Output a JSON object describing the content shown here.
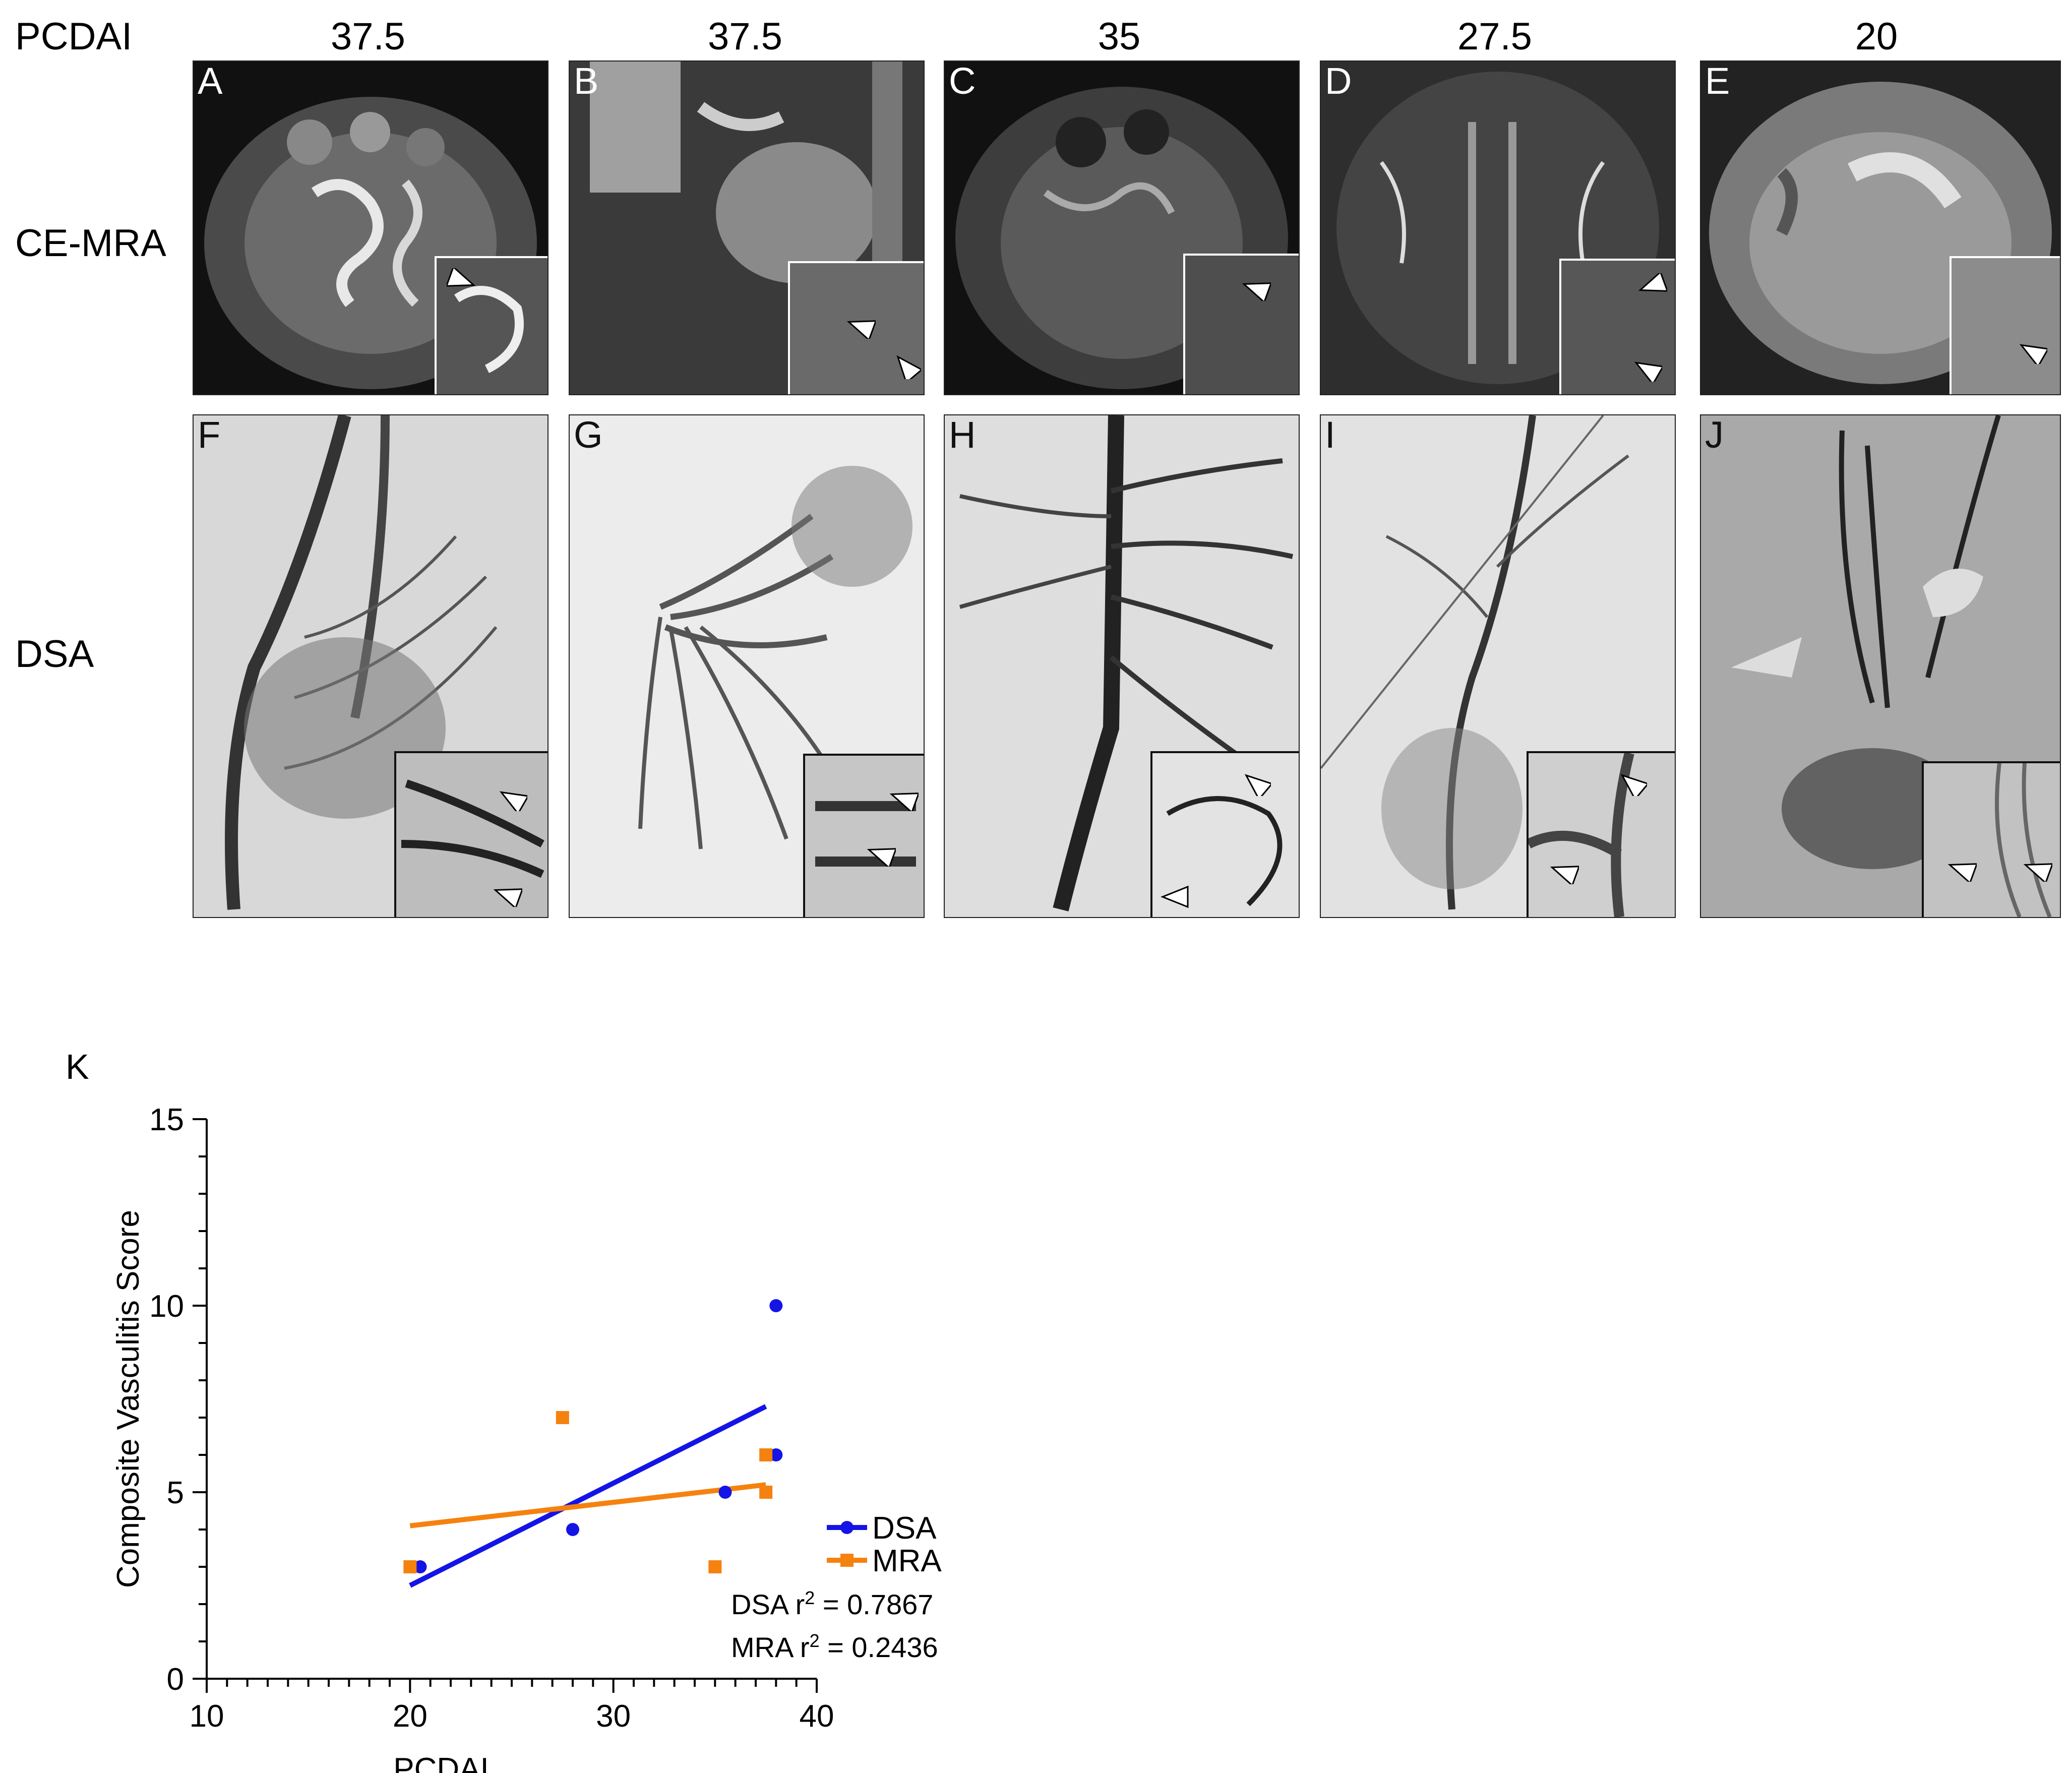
{
  "figure": {
    "row_header": "PCDAI",
    "scores": [
      "37.5",
      "37.5",
      "35",
      "27.5",
      "20"
    ],
    "row_labels": {
      "mra": "CE-MRA",
      "dsa": "DSA"
    },
    "mra_panels": [
      "A",
      "B",
      "C",
      "D",
      "E"
    ],
    "dsa_panels": [
      "F",
      "G",
      "H",
      "I",
      "J"
    ],
    "panel_k_label": "K"
  },
  "colors": {
    "dsa": "#1414e6",
    "mra": "#f5820f"
  },
  "chart_data": {
    "type": "scatter",
    "xlabel": "PCDAI",
    "ylabel": "Composite Vasculitis Score",
    "xlim": [
      10,
      40
    ],
    "ylim": [
      0,
      15
    ],
    "x_ticks": [
      "10",
      "20",
      "30",
      "40"
    ],
    "y_ticks": [
      "0",
      "5",
      "10",
      "15"
    ],
    "grid": false,
    "legend_position": "right",
    "series": [
      {
        "name": "DSA",
        "marker": "circle",
        "points": [
          [
            20.5,
            3
          ],
          [
            28,
            4
          ],
          [
            35.5,
            5
          ],
          [
            38,
            6
          ],
          [
            38,
            10
          ]
        ],
        "fit_line": [
          [
            20,
            2.5
          ],
          [
            37.5,
            7.3
          ]
        ]
      },
      {
        "name": "MRA",
        "marker": "square",
        "points": [
          [
            20,
            3
          ],
          [
            27.5,
            7
          ],
          [
            35,
            3
          ],
          [
            37.5,
            5
          ],
          [
            37.5,
            6
          ]
        ],
        "fit_line": [
          [
            20,
            4.1
          ],
          [
            37.5,
            5.2
          ]
        ]
      }
    ],
    "annotations": [
      {
        "label": "DSA r",
        "sup": "2",
        "value": " = 0.7867"
      },
      {
        "label": "MRA r",
        "sup": "2",
        "value": " = 0.2436"
      }
    ]
  }
}
